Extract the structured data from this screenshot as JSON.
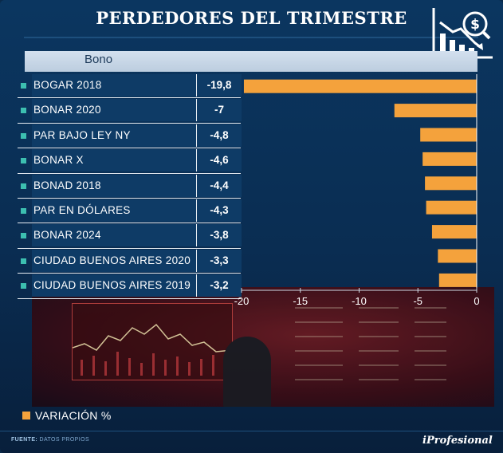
{
  "title": "PERDEDORES DEL TRIMESTRE",
  "header": {
    "column_label": "Bono"
  },
  "chart_data": {
    "type": "bar",
    "orientation": "horizontal",
    "categories": [
      "BOGAR 2018",
      "BONAR 2020",
      "PAR BAJO LEY NY",
      "BONAR X",
      "BONAD 2018",
      "PAR EN DÓLARES",
      "BONAR 2024",
      "CIUDAD BUENOS AIRES 2020",
      "CIUDAD BUENOS AIRES 2019"
    ],
    "values": [
      -19.8,
      -7,
      -4.8,
      -4.6,
      -4.4,
      -4.3,
      -3.8,
      -3.3,
      -3.2
    ],
    "value_labels": [
      "-19,8",
      "-7",
      "-4,8",
      "-4,6",
      "-4,4",
      "-4,3",
      "-3,8",
      "-3,3",
      "-3,2"
    ],
    "xlim": [
      -20,
      0
    ],
    "xticks": [
      -20,
      -15,
      -10,
      -5,
      0
    ],
    "series_name": "VARIACIÓN %",
    "bar_color": "#f4a23c"
  },
  "legend": {
    "label": "VARIACIÓN %"
  },
  "footer": {
    "source_label": "FUENTE:",
    "source_value": "DATOS PROPIOS",
    "brand": "iProfesional"
  },
  "colors": {
    "background": "#0b3660",
    "row": "#0e3b66",
    "bullet": "#3dbfb0",
    "bar": "#f4a23c"
  }
}
